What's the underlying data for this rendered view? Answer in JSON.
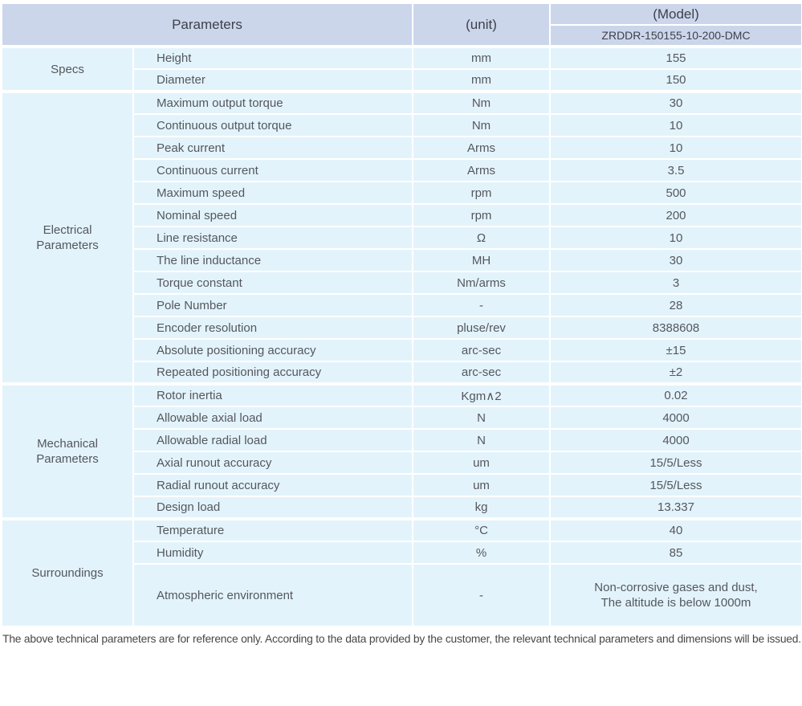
{
  "header": {
    "parameters_label": "Parameters",
    "unit_label": "(unit)",
    "model_label": "(Model)",
    "model_value": "ZRDDR-150155-10-200-DMC"
  },
  "sections": [
    {
      "category": "Specs",
      "rows": [
        {
          "name": "Height",
          "unit": "mm",
          "value": "155"
        },
        {
          "name": "Diameter",
          "unit": "mm",
          "value": "150"
        }
      ]
    },
    {
      "category": "Electrical Parameters",
      "rows": [
        {
          "name": "Maximum output torque",
          "unit": "Nm",
          "value": "30"
        },
        {
          "name": "Continuous output torque",
          "unit": "Nm",
          "value": "10"
        },
        {
          "name": "Peak current",
          "unit": "Arms",
          "value": "10"
        },
        {
          "name": "Continuous current",
          "unit": "Arms",
          "value": "3.5"
        },
        {
          "name": "Maximum speed",
          "unit": "rpm",
          "value": "500"
        },
        {
          "name": "Nominal speed",
          "unit": "rpm",
          "value": "200"
        },
        {
          "name": "Line resistance",
          "unit": "Ω",
          "value": "10"
        },
        {
          "name": "The line inductance",
          "unit": "MH",
          "value": "30"
        },
        {
          "name": "Torque constant",
          "unit": "Nm/arms",
          "value": "3"
        },
        {
          "name": "Pole Number",
          "unit": "-",
          "value": "28"
        },
        {
          "name": "Encoder resolution",
          "unit": "pluse/rev",
          "value": "8388608"
        },
        {
          "name": "Absolute positioning accuracy",
          "unit": "arc-sec",
          "value": "±15"
        },
        {
          "name": "Repeated positioning accuracy",
          "unit": "arc-sec",
          "value": "±2"
        }
      ]
    },
    {
      "category": "Mechanical Parameters",
      "rows": [
        {
          "name": "Rotor inertia",
          "unit": "Kgm∧2",
          "value": "0.02"
        },
        {
          "name": "Allowable axial load",
          "unit": "N",
          "value": "4000"
        },
        {
          "name": "Allowable radial load",
          "unit": "N",
          "value": "4000"
        },
        {
          "name": "Axial runout accuracy",
          "unit": "um",
          "value": "15/5/Less"
        },
        {
          "name": "Radial runout accuracy",
          "unit": "um",
          "value": "15/5/Less"
        },
        {
          "name": "Design load",
          "unit": "kg",
          "value": "13.337"
        }
      ]
    },
    {
      "category": "Surroundings",
      "rows": [
        {
          "name": "Temperature",
          "unit": "°C",
          "value": "40"
        },
        {
          "name": "Humidity",
          "unit": "%",
          "value": "85"
        },
        {
          "name": "Atmospheric environment",
          "unit": "-",
          "value": "Non-corrosive gases and dust,\nThe altitude is below 1000m",
          "tall": true
        }
      ]
    }
  ],
  "footer": {
    "note": "The above technical parameters are for reference only. According to the data provided by the customer, the relevant technical parameters and dimensions will be issued."
  },
  "colors": {
    "header_bg": "#ccd6eb",
    "row_bg": "#e3f3fb",
    "separator": "#ffffff",
    "body_text": "#54575e",
    "header_text": "#3d414b",
    "footer_text": "#474747"
  }
}
